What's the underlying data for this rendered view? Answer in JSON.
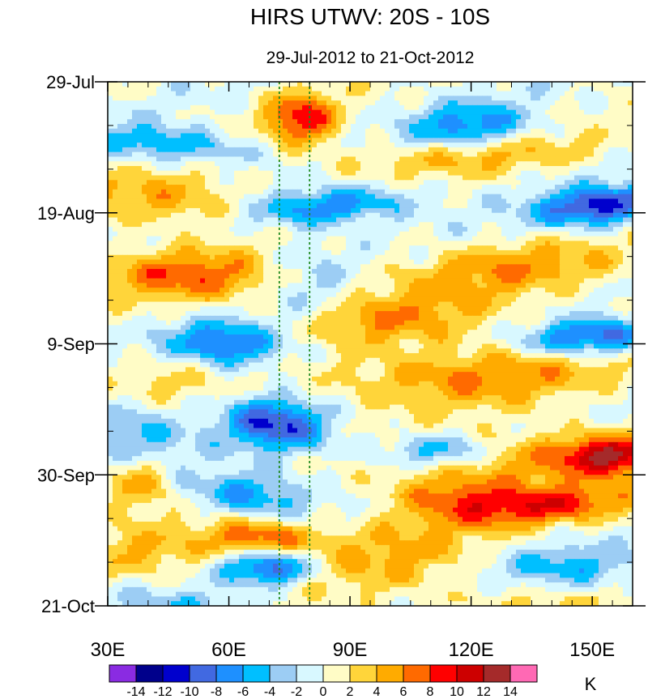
{
  "chart_data": {
    "type": "heatmap",
    "title": "HIRS UTWV: 20S - 10S",
    "subtitle": "29-Jul-2012 to 21-Oct-2012",
    "xlabel": "",
    "ylabel": "",
    "x_range": [
      30,
      160
    ],
    "y_range": [
      "29-Jul-2012",
      "21-Oct-2012"
    ],
    "x_ticks": [
      {
        "value": 30,
        "label": "30E"
      },
      {
        "value": 60,
        "label": "60E"
      },
      {
        "value": 90,
        "label": "90E"
      },
      {
        "value": 120,
        "label": "120E"
      },
      {
        "value": 150,
        "label": "150E"
      }
    ],
    "y_ticks": [
      {
        "day": 0,
        "label": "29-Jul"
      },
      {
        "day": 21,
        "label": "19-Aug"
      },
      {
        "day": 42,
        "label": "9-Sep"
      },
      {
        "day": 63,
        "label": "30-Sep"
      },
      {
        "day": 84,
        "label": "21-Oct"
      }
    ],
    "y_minor_step_days": 7,
    "reference_lines": [
      {
        "lon": 72.5,
        "color": "#1f8a1f",
        "style": "dotted"
      },
      {
        "lon": 80,
        "color": "#1f8a1f",
        "style": "dotted"
      }
    ],
    "colorbar": {
      "unit": "K",
      "levels": [
        -14,
        -12,
        -10,
        -8,
        -6,
        -4,
        -2,
        0,
        2,
        4,
        6,
        8,
        10,
        12,
        14
      ],
      "labels": [
        "-14",
        "-12",
        "-10",
        "-8",
        "-6",
        "-4",
        "-2",
        "0",
        "2",
        "4",
        "6",
        "8",
        "10",
        "12",
        "14"
      ],
      "colors": [
        "#8a2be2",
        "#00008b",
        "#0000cd",
        "#4169e1",
        "#1e90ff",
        "#00bfff",
        "#9ccdf4",
        "#d8f8ff",
        "#fffcc6",
        "#ffd53a",
        "#ffab00",
        "#ff6a00",
        "#ff0000",
        "#cd0000",
        "#a52a2a",
        "#ff69b4"
      ]
    },
    "features": [
      {
        "lon": 120,
        "day": 7,
        "amp": -7,
        "slon": 10,
        "sday": 2.5,
        "slope": -0.3
      },
      {
        "lon": 78,
        "day": 6,
        "amp": 9,
        "slon": 6,
        "sday": 3,
        "slope": 0.2
      },
      {
        "lon": 45,
        "day": 10,
        "amp": -6,
        "slon": 14,
        "sday": 2,
        "slope": 0.5
      },
      {
        "lon": 120,
        "day": 12,
        "amp": 4,
        "slon": 25,
        "sday": 2,
        "slope": -0.4
      },
      {
        "lon": 152,
        "day": 20,
        "amp": -11,
        "slon": 11,
        "sday": 2.2,
        "slope": -0.5
      },
      {
        "lon": 85,
        "day": 20,
        "amp": -8,
        "slon": 14,
        "sday": 2,
        "slope": -0.5
      },
      {
        "lon": 45,
        "day": 19,
        "amp": 5,
        "slon": 15,
        "sday": 3,
        "slope": 0.3
      },
      {
        "lon": 50,
        "day": 31,
        "amp": 7,
        "slon": 16,
        "sday": 3,
        "slope": 0.2
      },
      {
        "lon": 130,
        "day": 30,
        "amp": 5,
        "slon": 22,
        "sday": 3,
        "slope": -0.4
      },
      {
        "lon": 80,
        "day": 33,
        "amp": -3,
        "slon": 8,
        "sday": 6,
        "slope": 0
      },
      {
        "lon": 150,
        "day": 41,
        "amp": -10,
        "slon": 12,
        "sday": 2,
        "slope": -0.4
      },
      {
        "lon": 60,
        "day": 42,
        "amp": -9,
        "slon": 10,
        "sday": 2.5,
        "slope": 0.3
      },
      {
        "lon": 100,
        "day": 38,
        "amp": 5,
        "slon": 20,
        "sday": 3,
        "slope": -0.3
      },
      {
        "lon": 120,
        "day": 47,
        "amp": 6,
        "slon": 25,
        "sday": 3.5,
        "slope": -0.4
      },
      {
        "lon": 40,
        "day": 48,
        "amp": 3,
        "slon": 10,
        "sday": 3,
        "slope": 0
      },
      {
        "lon": 72,
        "day": 55,
        "amp": -10,
        "slon": 9,
        "sday": 3,
        "slope": 0.5
      },
      {
        "lon": 140,
        "day": 60,
        "amp": 6,
        "slon": 20,
        "sday": 3,
        "slope": -0.3
      },
      {
        "lon": 112,
        "day": 59,
        "amp": -6,
        "slon": 10,
        "sday": 1.8,
        "slope": 0
      },
      {
        "lon": 155,
        "day": 60,
        "amp": 8,
        "slon": 8,
        "sday": 2,
        "slope": 0
      },
      {
        "lon": 35,
        "day": 56,
        "amp": -5,
        "slon": 10,
        "sday": 4,
        "slope": 0
      },
      {
        "lon": 65,
        "day": 66,
        "amp": -7,
        "slon": 10,
        "sday": 2.5,
        "slope": 0.4
      },
      {
        "lon": 140,
        "day": 68,
        "amp": 8,
        "slon": 18,
        "sday": 2.2,
        "slope": -0.5
      },
      {
        "lon": 115,
        "day": 66,
        "amp": 6,
        "slon": 12,
        "sday": 2.5,
        "slope": 0
      },
      {
        "lon": 67,
        "day": 73,
        "amp": 8,
        "slon": 10,
        "sday": 2,
        "slope": 0
      },
      {
        "lon": 37,
        "day": 64,
        "amp": 6,
        "slon": 6,
        "sday": 3,
        "slope": 0
      },
      {
        "lon": 70,
        "day": 78,
        "amp": -10,
        "slon": 8,
        "sday": 2,
        "slope": 0
      },
      {
        "lon": 145,
        "day": 78,
        "amp": -5,
        "slon": 14,
        "sday": 2.5,
        "slope": 0
      },
      {
        "lon": 100,
        "day": 76,
        "amp": 4,
        "slon": 18,
        "sday": 4,
        "slope": -0.4
      },
      {
        "lon": 40,
        "day": 76,
        "amp": 4,
        "slon": 12,
        "sday": 3,
        "slope": 0
      },
      {
        "lon": 50,
        "day": 84,
        "amp": -4,
        "slon": 12,
        "sday": 2,
        "slope": 0
      },
      {
        "lon": 130,
        "day": 84,
        "amp": 2,
        "slon": 25,
        "sday": 3,
        "slope": 0
      }
    ]
  }
}
